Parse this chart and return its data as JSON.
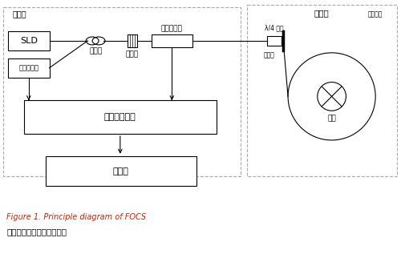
{
  "bg_color": "#ffffff",
  "line_color": "#000000",
  "dashed_color": "#aaaaaa",
  "caption_en": "Figure 1. Principle diagram of FOCS",
  "caption_zh": "开环光纤电流传感器原理图",
  "label_collector": "采集器",
  "label_sld": "SLD",
  "label_detector": "光电探测器",
  "label_coupler": "耦合器",
  "label_polarizer": "起偏器",
  "label_phase_mod": "相位调制器",
  "label_signal": "信号处理单元",
  "label_upper": "上位机",
  "label_sensor_ring": "传感环",
  "label_lambda4": "λ/4 玻片",
  "label_fiber_coil": "光纤线圈",
  "label_mirror": "反射镜",
  "label_wire": "导线",
  "fig_width": 5.0,
  "fig_height": 3.32,
  "dpi": 100
}
